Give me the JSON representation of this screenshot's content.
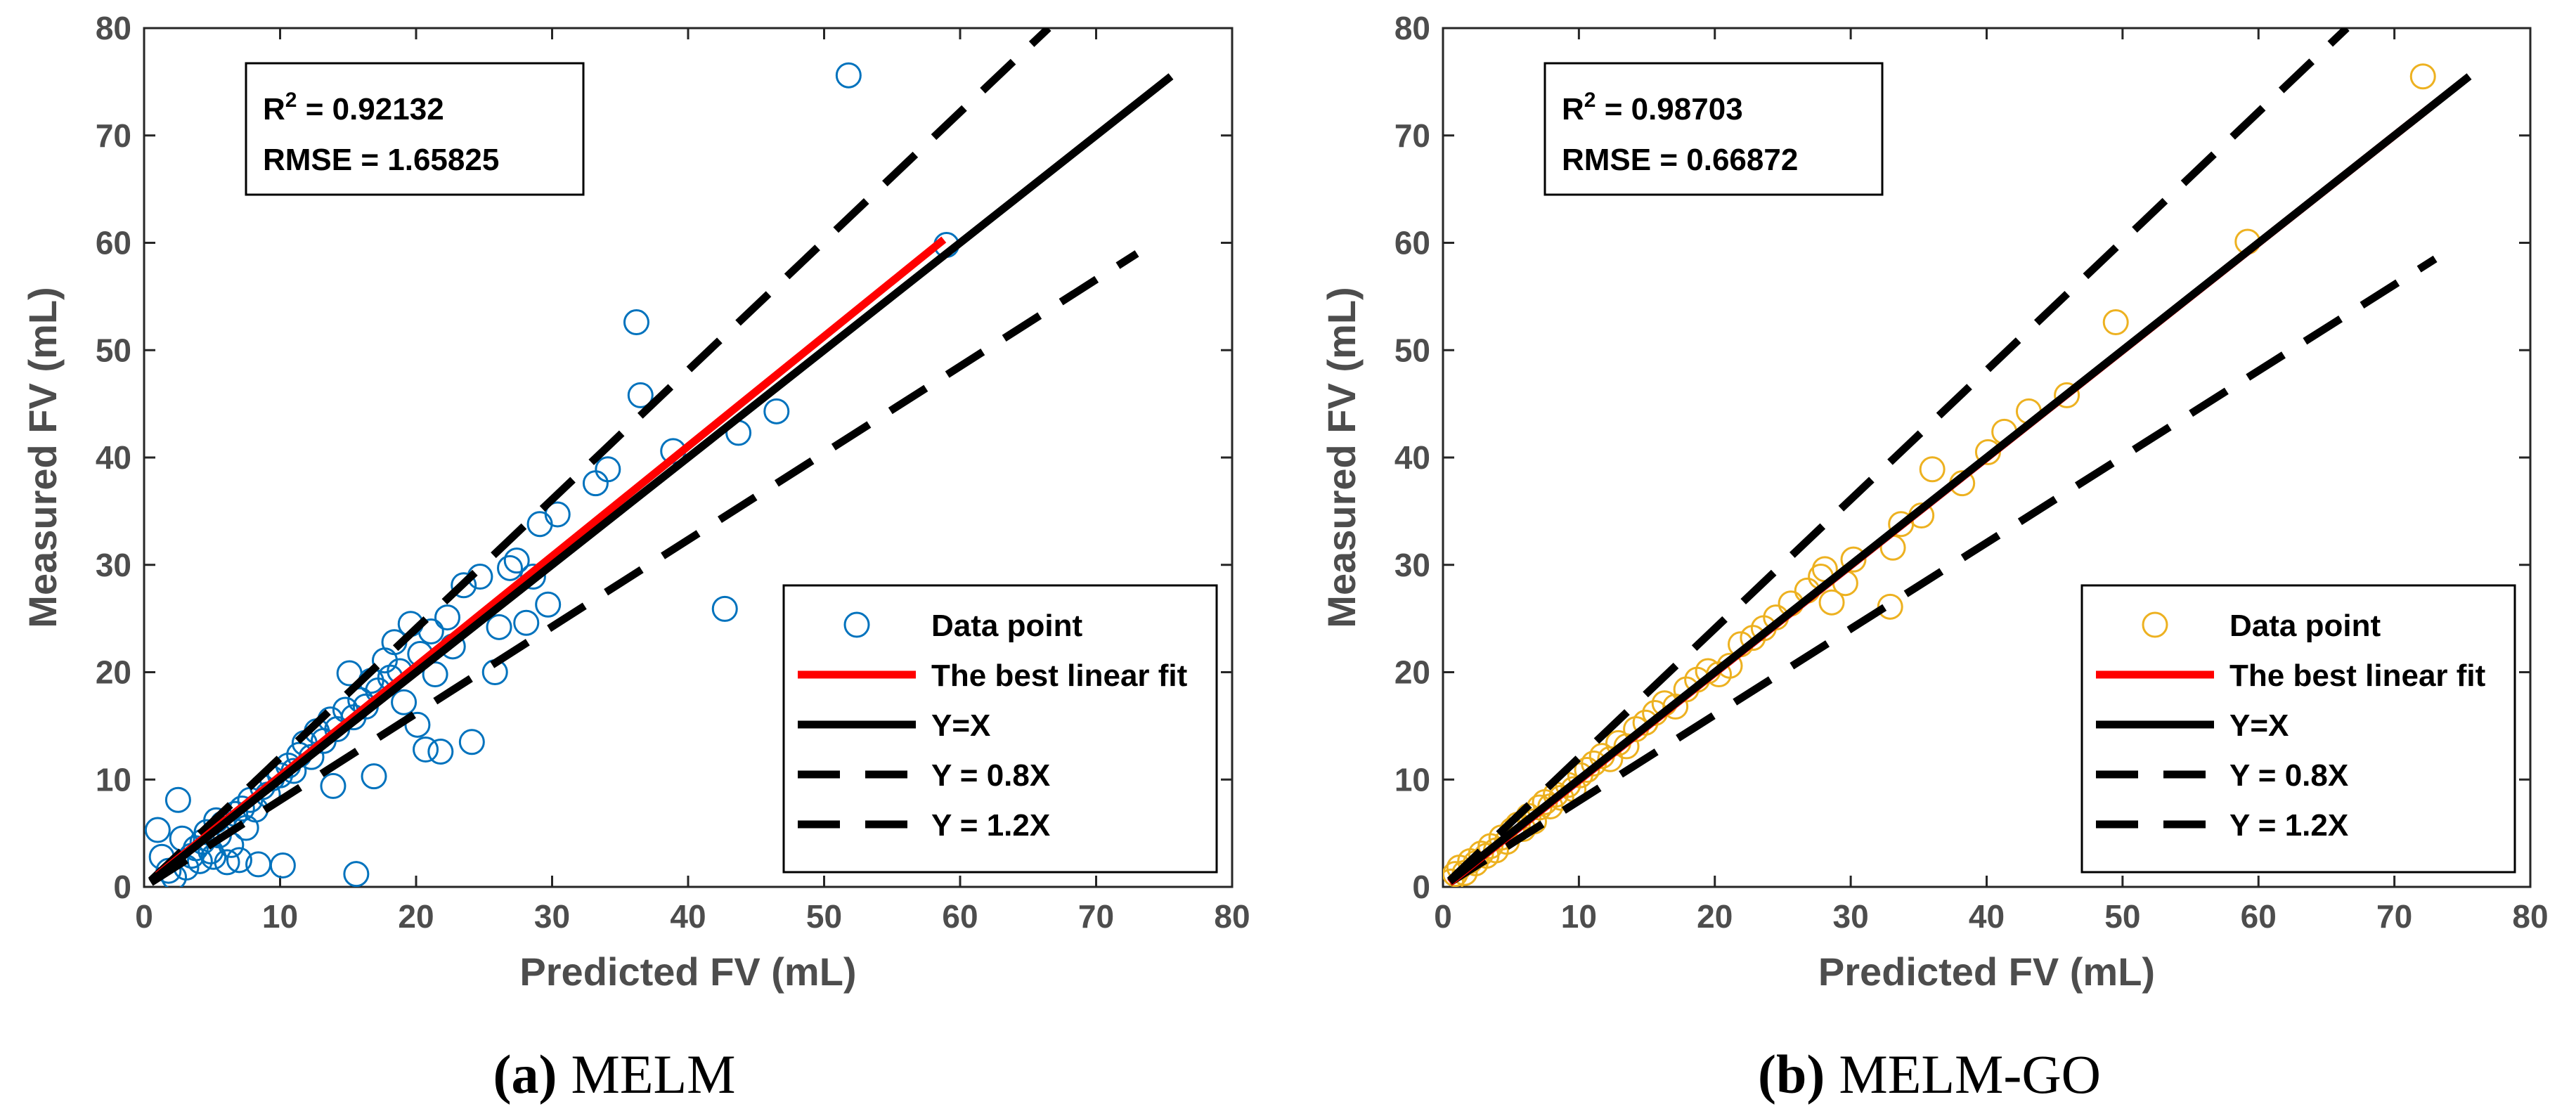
{
  "figure": {
    "captions": [
      {
        "letter": "(a)",
        "text": "MELM"
      },
      {
        "letter": "(b)",
        "text": "MELM-GO"
      }
    ]
  },
  "colors": {
    "best_fit": "#ff0000",
    "reference_lines": "#000000",
    "panel_a_points": "#0072bd",
    "panel_b_points": "#edb120"
  },
  "chart_data": [
    {
      "type": "scatter",
      "xlabel": "Predicted FV (mL)",
      "ylabel": "Measured FV (mL)",
      "xlim": [
        0,
        80
      ],
      "ylim": [
        0,
        80
      ],
      "xticks": [
        0,
        10,
        20,
        30,
        40,
        50,
        60,
        70,
        80
      ],
      "yticks": [
        0,
        10,
        20,
        30,
        40,
        50,
        60,
        70,
        80
      ],
      "grid": false,
      "legend_placement": "bottom-right",
      "annotation": {
        "r2_prefix": "R",
        "r2_sup": "2",
        "r2_value": " = 0.92132",
        "rmse": "RMSE = 1.65825"
      },
      "legend": [
        "Data point",
        "The best linear fit",
        "Y=X",
        "Y = 0.8X",
        "Y = 1.2X"
      ],
      "best_fit": {
        "x": [
          1,
          58.8
        ],
        "y": [
          1.1,
          60.3
        ]
      },
      "reference_lines": [
        {
          "label": "Y=X",
          "x": [
            0.5,
            75.5
          ],
          "y": [
            0.5,
            75.5
          ],
          "style": "solid"
        },
        {
          "label": "Y = 0.8X",
          "x": [
            0.5,
            73
          ],
          "y": [
            0.4,
            59
          ],
          "style": "dashed"
        },
        {
          "label": "Y = 1.2X",
          "x": [
            0.5,
            66.5
          ],
          "y": [
            0.6,
            80
          ],
          "style": "dashed"
        }
      ],
      "series": [
        {
          "name": "Data point",
          "marker": "circle",
          "points": [
            [
              1,
              5.3
            ],
            [
              1.3,
              2.8
            ],
            [
              1.8,
              1.5
            ],
            [
              2.2,
              0.9
            ],
            [
              2.5,
              8.1
            ],
            [
              2.8,
              4.5
            ],
            [
              3.1,
              1.8
            ],
            [
              3.5,
              2.9
            ],
            [
              3.8,
              3.6
            ],
            [
              4.1,
              2.4
            ],
            [
              4.3,
              4.2
            ],
            [
              4.6,
              5.1
            ],
            [
              4.9,
              3.3
            ],
            [
              5.1,
              2.8
            ],
            [
              5.3,
              6.2
            ],
            [
              5.5,
              4.8
            ],
            [
              5.8,
              5.9
            ],
            [
              6.1,
              2.3
            ],
            [
              6.4,
              3.9
            ],
            [
              6.7,
              6.8
            ],
            [
              7,
              2.5
            ],
            [
              7.2,
              7.3
            ],
            [
              7.5,
              5.5
            ],
            [
              7.8,
              8.1
            ],
            [
              8.2,
              7.2
            ],
            [
              8.4,
              2.1
            ],
            [
              8.7,
              9.3
            ],
            [
              9.1,
              8.6
            ],
            [
              9.4,
              10.1
            ],
            [
              10,
              10.4
            ],
            [
              10.2,
              2
            ],
            [
              10.6,
              11.3
            ],
            [
              11,
              10.8
            ],
            [
              11.4,
              12.3
            ],
            [
              11.8,
              13.4
            ],
            [
              12.3,
              12.1
            ],
            [
              12.7,
              14.5
            ],
            [
              13.2,
              13.6
            ],
            [
              13.7,
              15.6
            ],
            [
              13.9,
              9.4
            ],
            [
              14.2,
              14.7
            ],
            [
              14.8,
              16.5
            ],
            [
              15.1,
              19.9
            ],
            [
              15.4,
              15.8
            ],
            [
              15.6,
              1.2
            ],
            [
              15.9,
              17.4
            ],
            [
              16.3,
              16.8
            ],
            [
              16.7,
              19.2
            ],
            [
              16.9,
              10.3
            ],
            [
              17.2,
              18.3
            ],
            [
              17.7,
              21.1
            ],
            [
              18.1,
              19.5
            ],
            [
              18.4,
              22.8
            ],
            [
              18.8,
              20.1
            ],
            [
              19.1,
              17.2
            ],
            [
              19.6,
              24.5
            ],
            [
              20.1,
              15.1
            ],
            [
              20.3,
              21.7
            ],
            [
              20.7,
              12.8
            ],
            [
              21.1,
              23.8
            ],
            [
              21.4,
              19.8
            ],
            [
              21.8,
              12.6
            ],
            [
              22.3,
              25.1
            ],
            [
              22.7,
              22.4
            ],
            [
              23.5,
              28.1
            ],
            [
              24.1,
              13.5
            ],
            [
              24.7,
              28.9
            ],
            [
              25.8,
              20
            ],
            [
              26.1,
              24.2
            ],
            [
              26.9,
              29.7
            ],
            [
              27.4,
              30.4
            ],
            [
              28.1,
              24.6
            ],
            [
              28.6,
              28.9
            ],
            [
              29.1,
              33.8
            ],
            [
              29.7,
              26.3
            ],
            [
              30.4,
              34.7
            ],
            [
              33.2,
              37.6
            ],
            [
              34.1,
              38.9
            ],
            [
              36.2,
              52.6
            ],
            [
              36.5,
              45.8
            ],
            [
              38.9,
              40.6
            ],
            [
              42.7,
              25.9
            ],
            [
              43.7,
              42.3
            ],
            [
              46.5,
              44.3
            ],
            [
              51.8,
              75.6
            ],
            [
              59,
              59.8
            ]
          ]
        }
      ]
    },
    {
      "type": "scatter",
      "xlabel": "Predicted FV (mL)",
      "ylabel": "Measured FV (mL)",
      "xlim": [
        0,
        80
      ],
      "ylim": [
        0,
        80
      ],
      "xticks": [
        0,
        10,
        20,
        30,
        40,
        50,
        60,
        70,
        80
      ],
      "yticks": [
        0,
        10,
        20,
        30,
        40,
        50,
        60,
        70,
        80
      ],
      "grid": false,
      "legend_placement": "bottom-right",
      "annotation": {
        "r2_prefix": "R",
        "r2_sup": "2",
        "r2_value": " = 0.98703",
        "rmse": "RMSE = 0.66872"
      },
      "legend": [
        "Data point",
        "The best linear fit",
        "Y=X",
        "Y = 0.8X",
        "Y = 1.2X"
      ],
      "best_fit": {
        "x": [
          0.5,
          72.5
        ],
        "y": [
          0.4,
          72.5
        ]
      },
      "reference_lines": [
        {
          "label": "Y=X",
          "x": [
            0.5,
            75.5
          ],
          "y": [
            0.5,
            75.5
          ],
          "style": "solid"
        },
        {
          "label": "Y = 0.8X",
          "x": [
            0.5,
            73
          ],
          "y": [
            0.4,
            58.5
          ],
          "style": "dashed"
        },
        {
          "label": "Y = 1.2X",
          "x": [
            0.5,
            66.5
          ],
          "y": [
            0.6,
            80
          ],
          "style": "dashed"
        }
      ],
      "series": [
        {
          "name": "Data point",
          "marker": "circle",
          "points": [
            [
              0.6,
              0.5
            ],
            [
              0.9,
              1.2
            ],
            [
              1.2,
              1.8
            ],
            [
              1.6,
              1.3
            ],
            [
              2,
              2.4
            ],
            [
              2.4,
              2.2
            ],
            [
              2.8,
              3.1
            ],
            [
              3.2,
              2.9
            ],
            [
              3.5,
              3.8
            ],
            [
              3.9,
              3.4
            ],
            [
              4.3,
              4.6
            ],
            [
              4.7,
              4.2
            ],
            [
              5.1,
              5.3
            ],
            [
              5.5,
              5.8
            ],
            [
              5.9,
              5.4
            ],
            [
              6.3,
              6.6
            ],
            [
              6.7,
              6.1
            ],
            [
              7.1,
              7.4
            ],
            [
              7.5,
              7.9
            ],
            [
              7.9,
              7.5
            ],
            [
              8.3,
              8.6
            ],
            [
              8.7,
              8.3
            ],
            [
              9.2,
              9.5
            ],
            [
              9.6,
              9.1
            ],
            [
              10.1,
              10.4
            ],
            [
              10.6,
              10.9
            ],
            [
              11.1,
              11.5
            ],
            [
              11.7,
              12.2
            ],
            [
              12.3,
              11.9
            ],
            [
              12.9,
              13.4
            ],
            [
              13.5,
              13.1
            ],
            [
              14.2,
              14.7
            ],
            [
              14.9,
              15.3
            ],
            [
              15.6,
              16.2
            ],
            [
              16.3,
              17.1
            ],
            [
              17.1,
              16.8
            ],
            [
              17.9,
              18.4
            ],
            [
              18.7,
              19.3
            ],
            [
              19.5,
              20.1
            ],
            [
              20.3,
              19.8
            ],
            [
              21.1,
              20.6
            ],
            [
              21.9,
              22.6
            ],
            [
              22.8,
              23.2
            ],
            [
              23.6,
              24.1
            ],
            [
              24.5,
              25.1
            ],
            [
              25.6,
              26.4
            ],
            [
              26.8,
              27.6
            ],
            [
              27.8,
              28.9
            ],
            [
              28.1,
              29.6
            ],
            [
              28.6,
              26.5
            ],
            [
              29.6,
              28.3
            ],
            [
              30.2,
              30.5
            ],
            [
              32.9,
              26.1
            ],
            [
              33.1,
              31.6
            ],
            [
              33.7,
              33.8
            ],
            [
              35.2,
              34.6
            ],
            [
              36,
              38.9
            ],
            [
              38.2,
              37.6
            ],
            [
              40.1,
              40.5
            ],
            [
              41.3,
              42.4
            ],
            [
              43.1,
              44.3
            ],
            [
              45.9,
              45.8
            ],
            [
              49.5,
              52.6
            ],
            [
              59.2,
              60.1
            ],
            [
              72.1,
              75.5
            ]
          ]
        }
      ]
    }
  ]
}
